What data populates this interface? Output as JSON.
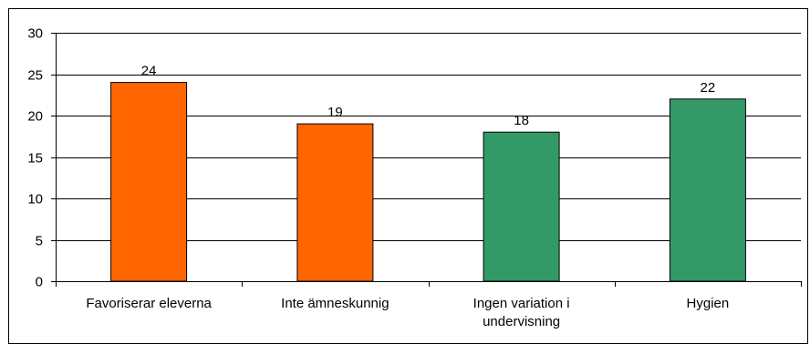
{
  "chart_data": {
    "type": "bar",
    "categories": [
      [
        "Favoriserar eleverna"
      ],
      [
        "Inte ämneskunnig"
      ],
      [
        "Ingen variation i",
        "undervisning"
      ],
      [
        "Hygien"
      ]
    ],
    "values": [
      24,
      19,
      18,
      22
    ],
    "data_labels": [
      "24",
      "19",
      "18",
      "22"
    ],
    "bar_colors": [
      "#ff6600",
      "#ff6600",
      "#339966",
      "#339966"
    ],
    "ylim": [
      0,
      30
    ],
    "yticks": [
      0,
      5,
      10,
      15,
      20,
      25,
      30
    ],
    "ytick_labels": [
      "0",
      "5",
      "10",
      "15",
      "20",
      "25",
      "30"
    ],
    "grid": true,
    "title": "",
    "xlabel": "",
    "ylabel": "",
    "legend": "none"
  }
}
